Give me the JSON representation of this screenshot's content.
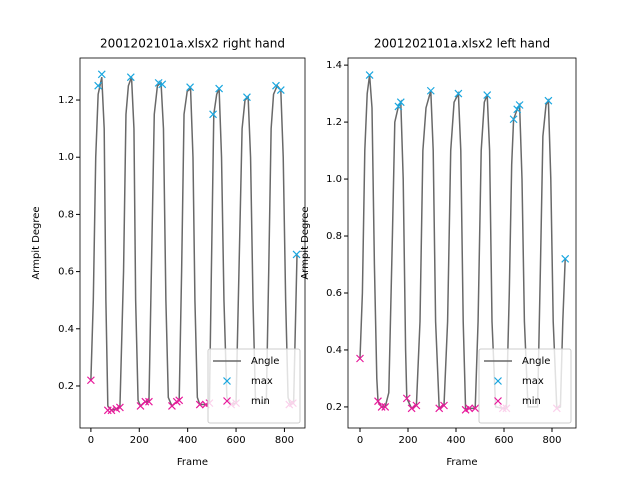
{
  "chart_data": [
    {
      "type": "line",
      "title": "2001202101a.xlsx2 right hand",
      "xlabel": "Frame",
      "ylabel": "Armpit Degree",
      "xlim": [
        -45,
        885
      ],
      "ylim": [
        0.053,
        1.347
      ],
      "xticks": [
        0,
        200,
        400,
        600,
        800
      ],
      "yticks": [
        0.2,
        0.4,
        0.6,
        0.8,
        {
          "value": 1,
          "label": "1.0"
        },
        1.2
      ],
      "legend": "lower right",
      "series": [
        {
          "name": "Angle",
          "style": "line",
          "color": "#696969",
          "x": [
            0,
            10,
            20,
            30,
            45,
            55,
            62,
            70,
            85,
            105,
            120,
            135,
            145,
            155,
            168,
            178,
            185,
            195,
            205,
            225,
            240,
            250,
            262,
            275,
            290,
            300,
            310,
            320,
            335,
            355,
            365,
            375,
            385,
            398,
            412,
            422,
            430,
            440,
            450,
            475,
            490,
            498,
            508,
            520,
            530,
            540,
            550,
            562,
            580,
            600,
            612,
            625,
            637,
            650,
            660,
            670,
            680,
            700,
            725,
            735,
            745,
            755,
            770,
            785,
            795,
            805,
            815,
            825,
            838,
            845,
            852
          ],
          "values": [
            0.22,
            0.5,
            1.0,
            1.22,
            1.28,
            1.1,
            0.5,
            0.13,
            0.115,
            0.12,
            0.125,
            0.6,
            1.15,
            1.25,
            1.28,
            1.1,
            0.5,
            0.15,
            0.13,
            0.145,
            0.145,
            0.6,
            1.15,
            1.25,
            1.26,
            1.1,
            0.5,
            0.16,
            0.13,
            0.145,
            0.15,
            0.6,
            1.15,
            1.23,
            1.24,
            1.0,
            0.5,
            0.16,
            0.135,
            0.135,
            0.14,
            0.6,
            1.15,
            1.22,
            1.24,
            1.0,
            0.5,
            0.16,
            0.135,
            0.14,
            0.6,
            1.1,
            1.2,
            1.21,
            1.0,
            0.5,
            0.16,
            0.14,
            0.14,
            0.6,
            1.1,
            1.22,
            1.25,
            1.235,
            1.0,
            0.5,
            0.16,
            0.135,
            0.14,
            0.4,
            0.66
          ]
        },
        {
          "name": "max",
          "style": "x",
          "color": "#1aa7e0",
          "x": [
            30,
            45,
            165,
            280,
            295,
            410,
            505,
            530,
            645,
            765,
            785,
            850
          ],
          "values": [
            1.25,
            1.29,
            1.28,
            1.26,
            1.255,
            1.245,
            1.15,
            1.24,
            1.21,
            1.25,
            1.235,
            0.66
          ]
        },
        {
          "name": "min",
          "style": "x",
          "color": "#e8199b",
          "x": [
            0,
            70,
            85,
            105,
            120,
            205,
            225,
            240,
            335,
            355,
            365,
            450,
            475,
            490,
            580,
            600,
            820,
            835
          ],
          "values": [
            0.22,
            0.115,
            0.115,
            0.12,
            0.125,
            0.13,
            0.145,
            0.145,
            0.13,
            0.145,
            0.15,
            0.135,
            0.135,
            0.14,
            0.135,
            0.14,
            0.135,
            0.14
          ]
        }
      ]
    },
    {
      "type": "line",
      "title": "2001202101a.xlsx2 left hand",
      "xlabel": "Frame",
      "ylabel": "Armpit Degree",
      "xlim": [
        -50,
        900
      ],
      "ylim": [
        0.126,
        1.425
      ],
      "xticks": [
        0,
        200,
        400,
        600,
        800
      ],
      "yticks": [
        0.2,
        0.4,
        0.6,
        0.8,
        {
          "value": 1,
          "label": "1.0"
        },
        1.2,
        1.4
      ],
      "legend": "lower right",
      "series": [
        {
          "name": "Angle",
          "style": "line",
          "color": "#696969",
          "x": [
            0,
            10,
            20,
            30,
            40,
            50,
            60,
            70,
            75,
            90,
            105,
            120,
            135,
            145,
            160,
            170,
            180,
            190,
            195,
            215,
            235,
            250,
            262,
            275,
            295,
            305,
            315,
            330,
            350,
            365,
            378,
            392,
            410,
            420,
            430,
            440,
            455,
            480,
            492,
            505,
            518,
            530,
            540,
            550,
            565,
            595,
            610,
            622,
            632,
            640,
            655,
            665,
            675,
            685,
            700,
            740,
            752,
            762,
            775,
            785,
            795,
            805,
            820,
            835,
            845,
            855
          ],
          "values": [
            0.37,
            0.6,
            1.1,
            1.3,
            1.365,
            1.25,
            0.7,
            0.3,
            0.22,
            0.2,
            0.2,
            0.25,
            0.8,
            1.2,
            1.255,
            1.27,
            1.0,
            0.4,
            0.23,
            0.195,
            0.205,
            0.5,
            1.1,
            1.25,
            1.31,
            1.1,
            0.5,
            0.195,
            0.205,
            0.5,
            1.1,
            1.27,
            1.3,
            1.1,
            0.5,
            0.19,
            0.195,
            0.195,
            0.5,
            1.1,
            1.27,
            1.295,
            1.1,
            0.5,
            0.2,
            0.195,
            0.195,
            0.6,
            1.05,
            1.21,
            1.245,
            1.26,
            1.0,
            0.5,
            0.2,
            0.2,
            0.7,
            1.15,
            1.26,
            1.275,
            1.0,
            0.5,
            0.195,
            0.2,
            0.5,
            0.72
          ]
        },
        {
          "name": "max",
          "style": "x",
          "color": "#1aa7e0",
          "x": [
            40,
            160,
            170,
            295,
            410,
            530,
            640,
            655,
            665,
            785,
            855
          ],
          "values": [
            1.365,
            1.255,
            1.27,
            1.31,
            1.3,
            1.295,
            1.21,
            1.245,
            1.26,
            1.275,
            0.72
          ]
        },
        {
          "name": "min",
          "style": "x",
          "color": "#e8199b",
          "x": [
            0,
            75,
            90,
            105,
            195,
            215,
            235,
            330,
            350,
            440,
            455,
            480,
            595,
            610,
            820
          ],
          "values": [
            0.37,
            0.22,
            0.2,
            0.2,
            0.23,
            0.195,
            0.205,
            0.195,
            0.205,
            0.19,
            0.195,
            0.195,
            0.195,
            0.195,
            0.195
          ]
        }
      ]
    }
  ]
}
